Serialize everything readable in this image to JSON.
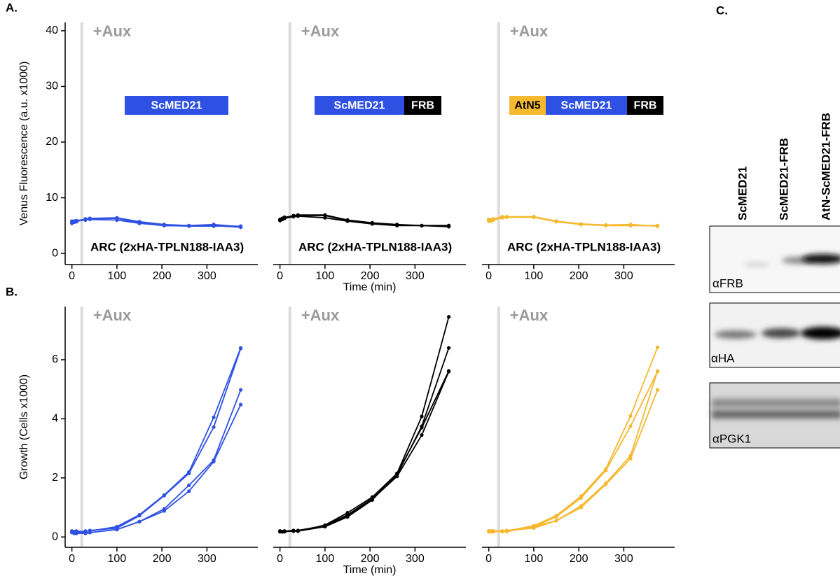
{
  "chart_data": [
    {
      "type": "line",
      "panel_label": "A.",
      "ylabel": "Venus Fluorescence (a.u. x1000)",
      "aux_label": "+Aux",
      "aux_time": 22,
      "strain_label": "ARC (2xHA-TPLN188-IAA3)",
      "construct": [
        {
          "label": "ScMED21",
          "color": "#2f51e3",
          "text_color": "#ffffff"
        }
      ],
      "x": [
        0,
        5,
        10,
        30,
        40,
        100,
        150,
        205,
        260,
        315,
        375
      ],
      "series": [
        {
          "color": "#2f51e3",
          "values": [
            5.5,
            5.8,
            5.7,
            6.2,
            6.3,
            6.4,
            5.7,
            5.2,
            5.0,
            5.2,
            4.8
          ]
        },
        {
          "color": "#2f51e3",
          "values": [
            5.8,
            5.6,
            5.9,
            6.1,
            6.1,
            6.0,
            5.4,
            5.0,
            5.0,
            5.0,
            4.7
          ]
        },
        {
          "color": "#2f51e3",
          "values": [
            5.4,
            5.7,
            5.8,
            6.0,
            6.2,
            6.3,
            5.5,
            5.0,
            4.9,
            4.9,
            4.9
          ]
        }
      ],
      "xlim": [
        -15,
        413
      ],
      "ylim": [
        -2,
        41.5
      ],
      "xticks": [
        0,
        100,
        200,
        300
      ],
      "yticks": [
        0,
        10,
        20,
        30,
        40
      ]
    },
    {
      "type": "line",
      "xlabel": "Time (min)",
      "aux_label": "+Aux",
      "aux_time": 22,
      "strain_label": "ARC (2xHA-TPLN188-IAA3)",
      "construct": [
        {
          "label": "ScMED21",
          "color": "#2f51e3",
          "text_color": "#ffffff"
        },
        {
          "label": "FRB",
          "color": "#000000",
          "text_color": "#ffffff"
        }
      ],
      "x": [
        0,
        5,
        10,
        30,
        40,
        100,
        150,
        205,
        260,
        315,
        375
      ],
      "series": [
        {
          "color": "#000000",
          "values": [
            5.9,
            6.2,
            6.4,
            6.8,
            6.9,
            6.9,
            6.0,
            5.5,
            5.2,
            5.0,
            5.0
          ]
        },
        {
          "color": "#000000",
          "values": [
            6.0,
            6.1,
            6.3,
            6.6,
            6.7,
            6.4,
            5.8,
            5.3,
            5.0,
            5.0,
            4.8
          ]
        },
        {
          "color": "#000000",
          "values": [
            6.1,
            6.3,
            6.5,
            6.7,
            6.8,
            6.8,
            5.9,
            5.4,
            5.1,
            5.0,
            5.0
          ]
        }
      ],
      "xlim": [
        -15,
        413
      ],
      "ylim": [
        -2,
        41.5
      ],
      "xticks": [
        0,
        100,
        200,
        300
      ]
    },
    {
      "type": "line",
      "aux_label": "+Aux",
      "aux_time": 22,
      "strain_label": "ARC (2xHA-TPLN188-IAA3)",
      "construct": [
        {
          "label": "AtN5",
          "color": "#f5b82e",
          "text_color": "#000000"
        },
        {
          "label": "ScMED21",
          "color": "#2f51e3",
          "text_color": "#ffffff"
        },
        {
          "label": "FRB",
          "color": "#000000",
          "text_color": "#ffffff"
        }
      ],
      "x": [
        0,
        5,
        10,
        30,
        40,
        100,
        150,
        205,
        260,
        315,
        375
      ],
      "series": [
        {
          "color": "#f5b82e",
          "values": [
            6.0,
            5.9,
            6.1,
            6.5,
            6.6,
            6.6,
            5.8,
            5.3,
            5.1,
            5.2,
            4.9
          ]
        },
        {
          "color": "#f5b82e",
          "values": [
            5.8,
            6.0,
            6.0,
            6.4,
            6.5,
            6.5,
            5.7,
            5.2,
            5.0,
            5.0,
            5.0
          ]
        },
        {
          "color": "#f5b82e",
          "values": [
            6.1,
            5.8,
            6.2,
            6.6,
            6.5,
            6.6,
            5.8,
            5.2,
            5.1,
            5.1,
            4.9
          ]
        }
      ],
      "xlim": [
        -15,
        413
      ],
      "ylim": [
        -2,
        41.5
      ],
      "xticks": [
        0,
        100,
        200,
        300
      ]
    },
    {
      "type": "line",
      "panel_label": "B.",
      "ylabel": "Growth (Cells x1000)",
      "aux_label": "+Aux",
      "aux_time": 22,
      "x": [
        0,
        5,
        10,
        30,
        40,
        100,
        150,
        205,
        260,
        315,
        375
      ],
      "series": [
        {
          "color": "#2f51e3",
          "values": [
            0.2,
            0.15,
            0.15,
            0.2,
            0.2,
            0.35,
            0.75,
            1.42,
            2.2,
            4.05,
            6.4
          ]
        },
        {
          "color": "#2f51e3",
          "values": [
            0.2,
            0.18,
            0.2,
            0.18,
            0.22,
            0.3,
            0.72,
            1.4,
            2.15,
            3.72,
            6.38
          ]
        },
        {
          "color": "#2f51e3",
          "values": [
            0.15,
            0.12,
            0.12,
            0.12,
            0.15,
            0.25,
            0.52,
            0.95,
            1.75,
            2.6,
            4.98
          ]
        },
        {
          "color": "#2f51e3",
          "values": [
            0.18,
            0.15,
            0.15,
            0.15,
            0.15,
            0.25,
            0.52,
            0.88,
            1.55,
            2.55,
            4.48
          ]
        }
      ],
      "xlim": [
        -15,
        413
      ],
      "ylim": [
        -0.35,
        7.8
      ],
      "xticks": [
        0,
        100,
        200,
        300
      ],
      "yticks": [
        0,
        2,
        4,
        6
      ]
    },
    {
      "type": "line",
      "xlabel": "Time (min)",
      "aux_label": "+Aux",
      "aux_time": 22,
      "x": [
        0,
        5,
        10,
        30,
        40,
        100,
        150,
        205,
        260,
        315,
        375
      ],
      "series": [
        {
          "color": "#000000",
          "values": [
            0.2,
            0.18,
            0.18,
            0.2,
            0.2,
            0.4,
            0.82,
            1.35,
            2.15,
            4.08,
            7.45
          ]
        },
        {
          "color": "#000000",
          "values": [
            0.18,
            0.18,
            0.2,
            0.22,
            0.22,
            0.38,
            0.75,
            1.3,
            2.1,
            3.75,
            6.4
          ]
        },
        {
          "color": "#000000",
          "values": [
            0.18,
            0.18,
            0.18,
            0.2,
            0.2,
            0.35,
            0.7,
            1.28,
            2.05,
            3.45,
            5.6
          ]
        },
        {
          "color": "#000000",
          "values": [
            0.2,
            0.18,
            0.2,
            0.2,
            0.2,
            0.35,
            0.68,
            1.25,
            2.15,
            3.7,
            5.62
          ]
        }
      ],
      "xlim": [
        -15,
        413
      ],
      "ylim": [
        -0.35,
        7.8
      ],
      "xticks": [
        0,
        100,
        200,
        300
      ]
    },
    {
      "type": "line",
      "aux_label": "+Aux",
      "aux_time": 22,
      "x": [
        0,
        5,
        10,
        30,
        40,
        100,
        150,
        205,
        260,
        315,
        375
      ],
      "series": [
        {
          "color": "#f5b82e",
          "values": [
            0.18,
            0.2,
            0.2,
            0.2,
            0.2,
            0.38,
            0.72,
            1.38,
            2.3,
            4.1,
            6.42
          ]
        },
        {
          "color": "#f5b82e",
          "values": [
            0.18,
            0.18,
            0.18,
            0.2,
            0.18,
            0.35,
            0.55,
            1.05,
            1.82,
            2.75,
            5.62
          ]
        },
        {
          "color": "#f5b82e",
          "values": [
            0.2,
            0.18,
            0.2,
            0.2,
            0.22,
            0.3,
            0.55,
            1.0,
            1.78,
            2.65,
            4.98
          ]
        },
        {
          "color": "#f5b82e",
          "values": [
            0.2,
            0.2,
            0.18,
            0.18,
            0.2,
            0.35,
            0.68,
            1.32,
            2.25,
            3.75,
            5.6
          ]
        }
      ],
      "xlim": [
        -15,
        413
      ],
      "ylim": [
        -0.35,
        7.8
      ],
      "xticks": [
        0,
        100,
        200,
        300
      ]
    }
  ],
  "blot": {
    "panel_label": "C.",
    "lanes": [
      "ScMED21",
      "ScMED21-FRB",
      "AtN-ScMED21-FRB"
    ],
    "antibodies": [
      "αFRB",
      "αHA",
      "αPGK1"
    ]
  }
}
